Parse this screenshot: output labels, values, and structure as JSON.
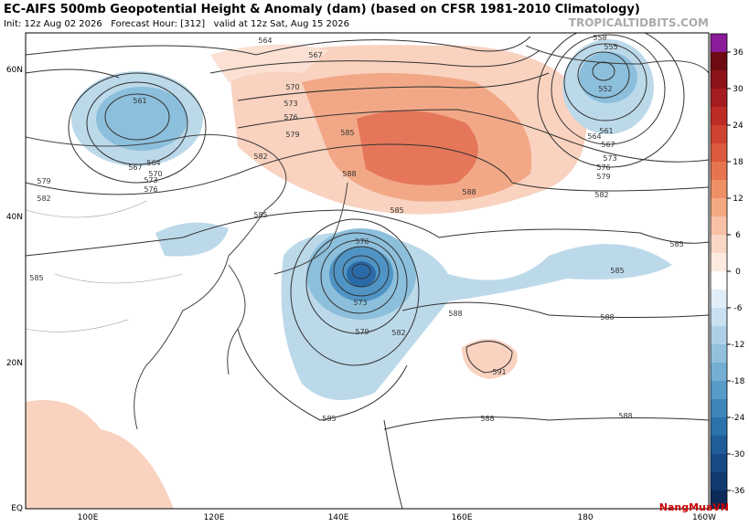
{
  "header": {
    "title": "EC-AIFS 500mb Geopotential Height & Anomaly (dam) (based on CFSR 1981-2010 Climatology)",
    "subtitle": "Init: 12z Aug 02 2026   Forecast Hour: [312]   valid at 12z Sat, Aug 15 2026",
    "source": "TROPICALTIDBITS.COM"
  },
  "map": {
    "lat_labels": [
      "60N",
      "40N",
      "20N",
      "EQ"
    ],
    "lon_labels": [
      "100E",
      "120E",
      "140E",
      "160E",
      "180",
      "160W"
    ],
    "contour_labels": [
      "564",
      "567",
      "570",
      "573",
      "576",
      "579",
      "582",
      "585",
      "561",
      "564",
      "567",
      "570",
      "573",
      "576",
      "579",
      "582",
      "585",
      "588",
      "558",
      "555",
      "552",
      "561",
      "564",
      "567",
      "573",
      "576",
      "579",
      "582",
      "576",
      "573",
      "579",
      "582",
      "585",
      "588",
      "588",
      "591",
      "588",
      "588",
      "585",
      "588",
      "585",
      "585",
      "585"
    ]
  },
  "colorbar": {
    "ticks": [
      36,
      30,
      24,
      18,
      12,
      6,
      0,
      -6,
      -12,
      -18,
      -24,
      -30,
      -36
    ]
  },
  "watermark": "NangMuaVN"
}
